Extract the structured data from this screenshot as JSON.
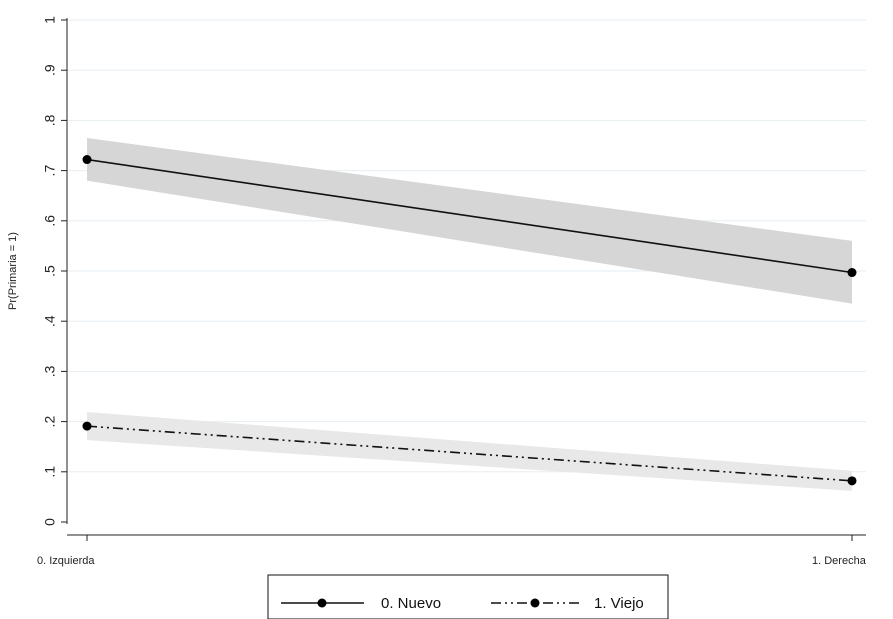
{
  "chart_data": {
    "type": "line",
    "title": "",
    "xlabel": "",
    "ylabel": "Pr(Primaria = 1)",
    "categories": [
      "0. Izquierda",
      "1. Derecha"
    ],
    "ylim": [
      0,
      1
    ],
    "yticks": [
      {
        "value": 0,
        "label": "0"
      },
      {
        "value": 0.1,
        "label": ".1"
      },
      {
        "value": 0.2,
        "label": ".2"
      },
      {
        "value": 0.3,
        "label": ".3"
      },
      {
        "value": 0.4,
        "label": ".4"
      },
      {
        "value": 0.5,
        "label": ".5"
      },
      {
        "value": 0.6,
        "label": ".6"
      },
      {
        "value": 0.7,
        "label": ".7"
      },
      {
        "value": 0.8,
        "label": ".8"
      },
      {
        "value": 0.9,
        "label": ".9"
      },
      {
        "value": 1,
        "label": "1"
      }
    ],
    "grid": true,
    "legend_position": "bottom",
    "series": [
      {
        "name": "0. Nuevo",
        "values": [
          0.722,
          0.497
        ],
        "ci_lower": [
          0.68,
          0.435
        ],
        "ci_upper": [
          0.765,
          0.56
        ],
        "line_style": "solid",
        "band_color": "#d6d6d6"
      },
      {
        "name": "1. Viejo",
        "values": [
          0.191,
          0.082
        ],
        "ci_lower": [
          0.163,
          0.062
        ],
        "ci_upper": [
          0.219,
          0.102
        ],
        "line_style": "dash-dot-dot",
        "band_color": "#e8e8e8"
      }
    ]
  }
}
